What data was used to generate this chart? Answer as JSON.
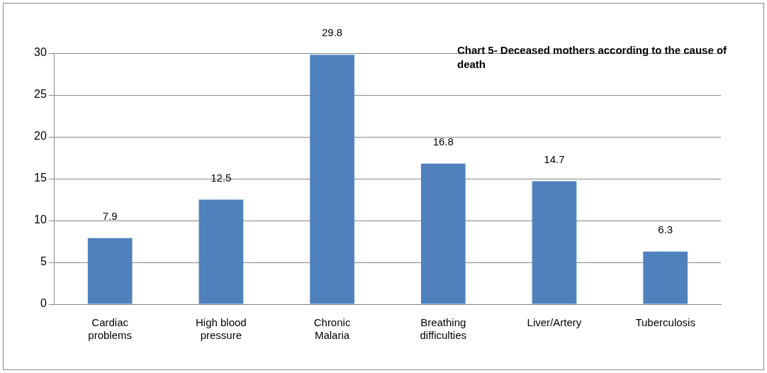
{
  "chart_data": {
    "type": "bar",
    "title": "Chart 5- Deceased mothers according to the cause of death",
    "categories": [
      "Cardiac problems",
      "High blood pressure",
      "Chronic Malaria",
      "Breathing difficulties",
      "Liver/Artery",
      "Tuberculosis"
    ],
    "values": [
      7.9,
      12.5,
      29.8,
      16.8,
      14.7,
      6.3
    ],
    "color": "#4f81bd",
    "ylim": [
      0,
      30
    ],
    "yticks": [
      0,
      5,
      10,
      15,
      20,
      25,
      30
    ],
    "grid": "y",
    "data_labels": true,
    "legend": false
  }
}
